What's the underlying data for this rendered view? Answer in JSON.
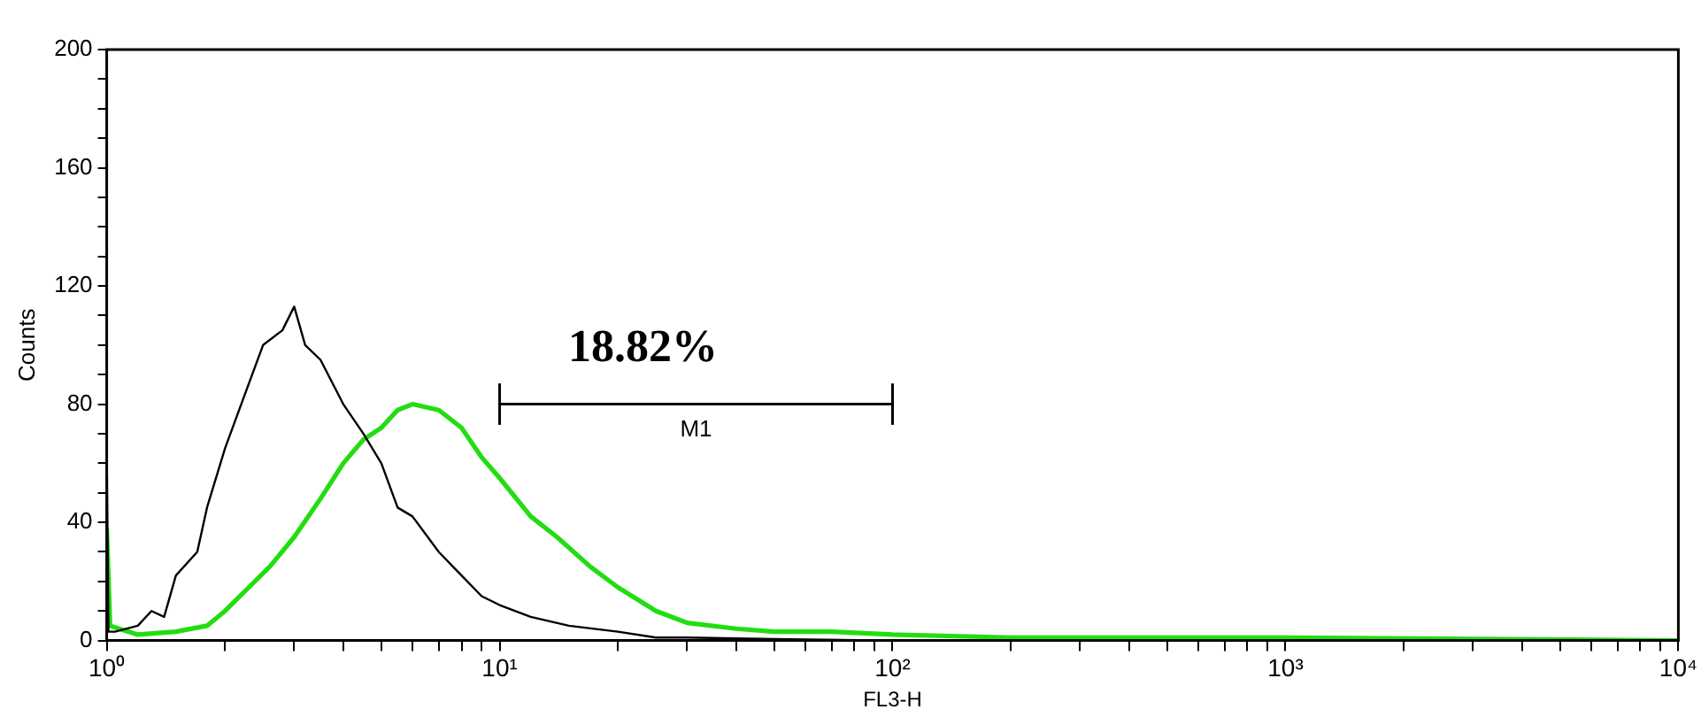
{
  "chart_data": {
    "type": "line",
    "xlabel": "FL3-H",
    "ylabel": "Counts",
    "log": "x",
    "grid": false,
    "legend": false,
    "marker": "none",
    "xlim": [
      1,
      10000
    ],
    "ylim": [
      0,
      200
    ],
    "xticks": [
      {
        "value": 1,
        "label": "10⁰"
      },
      {
        "value": 2,
        "label": null
      },
      {
        "value": 3,
        "label": null
      },
      {
        "value": 4,
        "label": null
      },
      {
        "value": 5,
        "label": null
      },
      {
        "value": 6,
        "label": null
      },
      {
        "value": 7,
        "label": null
      },
      {
        "value": 8,
        "label": null
      },
      {
        "value": 9,
        "label": null
      },
      {
        "value": 10,
        "label": "10¹"
      },
      {
        "value": 20,
        "label": null
      },
      {
        "value": 30,
        "label": null
      },
      {
        "value": 40,
        "label": null
      },
      {
        "value": 50,
        "label": null
      },
      {
        "value": 60,
        "label": null
      },
      {
        "value": 70,
        "label": null
      },
      {
        "value": 80,
        "label": null
      },
      {
        "value": 90,
        "label": null
      },
      {
        "value": 100,
        "label": "10²"
      },
      {
        "value": 200,
        "label": null
      },
      {
        "value": 300,
        "label": null
      },
      {
        "value": 400,
        "label": null
      },
      {
        "value": 500,
        "label": null
      },
      {
        "value": 600,
        "label": null
      },
      {
        "value": 700,
        "label": null
      },
      {
        "value": 800,
        "label": null
      },
      {
        "value": 900,
        "label": null
      },
      {
        "value": 1000,
        "label": "10³"
      },
      {
        "value": 2000,
        "label": null
      },
      {
        "value": 3000,
        "label": null
      },
      {
        "value": 4000,
        "label": null
      },
      {
        "value": 5000,
        "label": null
      },
      {
        "value": 6000,
        "label": null
      },
      {
        "value": 7000,
        "label": null
      },
      {
        "value": 8000,
        "label": null
      },
      {
        "value": 9000,
        "label": null
      },
      {
        "value": 10000,
        "label": "10⁴"
      }
    ],
    "yticks": [
      0,
      {
        "value": 10,
        "label": null
      },
      {
        "value": 20,
        "label": null
      },
      {
        "value": 30,
        "label": null
      },
      40,
      {
        "value": 50,
        "label": null
      },
      {
        "value": 60,
        "label": null
      },
      {
        "value": 70,
        "label": null
      },
      80,
      {
        "value": 90,
        "label": null
      },
      {
        "value": 100,
        "label": null
      },
      {
        "value": 110,
        "label": null
      },
      120,
      {
        "value": 130,
        "label": null
      },
      {
        "value": 140,
        "label": null
      },
      {
        "value": 150,
        "label": null
      },
      160,
      {
        "value": 170,
        "label": null
      },
      {
        "value": 180,
        "label": null
      },
      {
        "value": 190,
        "label": null
      },
      200
    ],
    "series": [
      {
        "color": "#000000",
        "x": [
          1,
          1.01,
          1.05,
          1.2,
          1.3,
          1.4,
          1.5,
          1.7,
          1.8,
          2,
          2.2,
          2.5,
          2.8,
          3,
          3.2,
          3.5,
          4,
          4.5,
          5,
          5.5,
          6,
          7,
          8,
          9,
          10,
          12,
          15,
          20,
          25,
          30,
          50,
          100,
          10000
        ],
        "values": [
          65,
          3,
          3,
          5,
          10,
          8,
          22,
          30,
          45,
          65,
          80,
          100,
          105,
          113,
          100,
          95,
          80,
          70,
          60,
          45,
          42,
          30,
          22,
          15,
          12,
          8,
          5,
          3,
          1,
          1,
          0.5,
          0,
          0
        ]
      },
      {
        "color": "#22dd11",
        "x": [
          1,
          1.02,
          1.2,
          1.5,
          1.8,
          2,
          2.3,
          2.6,
          3,
          3.5,
          4,
          4.5,
          5,
          5.5,
          6,
          7,
          8,
          9,
          10,
          12,
          14,
          17,
          20,
          25,
          30,
          40,
          50,
          70,
          100,
          200,
          400,
          1000,
          10000
        ],
        "values": [
          38,
          5,
          2,
          3,
          5,
          10,
          18,
          25,
          35,
          48,
          60,
          68,
          72,
          78,
          80,
          78,
          72,
          62,
          55,
          42,
          35,
          25,
          18,
          10,
          6,
          4,
          3,
          3,
          2,
          1,
          1,
          1,
          0
        ]
      },
      {
        "name": "M1",
        "color": "#000000",
        "x": [
          10,
          100
        ],
        "values": [
          80,
          80
        ],
        "errors": [
          7,
          7
        ]
      }
    ],
    "annotations": [
      "18.82%"
    ]
  }
}
